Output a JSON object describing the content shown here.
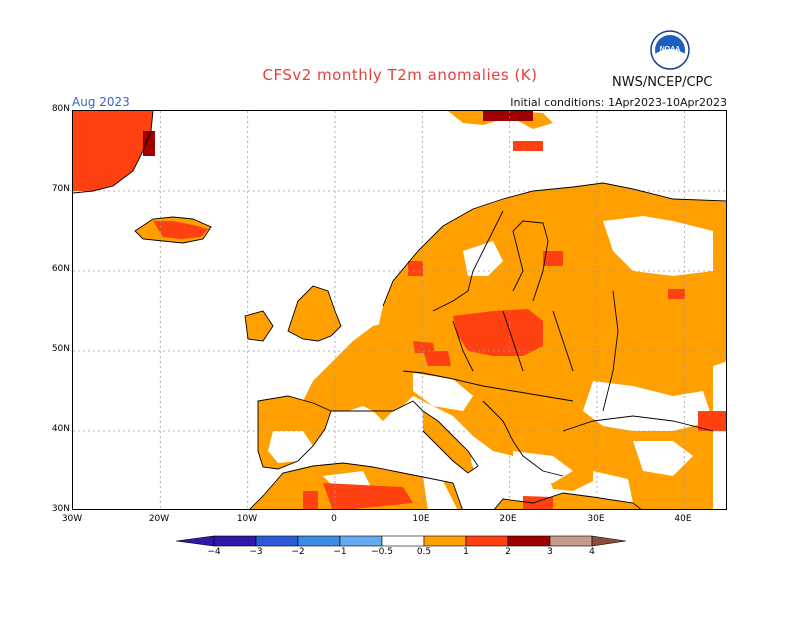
{
  "title": "CFSv2 monthly T2m anomalies (K)",
  "agency": "NWS/NCEP/CPC",
  "logo_text": "NOAA",
  "month": "Aug 2023",
  "initial_conditions": "Initial conditions: 1Apr2023-10Apr2023",
  "colors": {
    "title": "#e8403a",
    "month": "#3a5fcd",
    "land_outline": "#000000",
    "grid": "#9a9a9a",
    "cat_0_5_1": "#ffa000",
    "cat_1_2": "#ff4010",
    "cat_2_3": "#a00000",
    "cat_3_4": "#c89c8c"
  },
  "lat_ticks": [
    "80N",
    "70N",
    "60N",
    "50N",
    "40N",
    "30N"
  ],
  "lon_ticks": [
    "30W",
    "20W",
    "10W",
    "0",
    "10E",
    "20E",
    "30E",
    "40E"
  ],
  "colorbar": {
    "labels": [
      "−4",
      "−3",
      "−2",
      "−1",
      "−0.5",
      "0.5",
      "1",
      "2",
      "3",
      "4"
    ],
    "colors": [
      "#3218a8",
      "#2c5ad8",
      "#3c8ce6",
      "#64aaf0",
      "#ffffff",
      "#ffa000",
      "#ff4010",
      "#a00000",
      "#c89c8c"
    ],
    "low_end": "#3218a8",
    "high_end": "#8c4c3c"
  },
  "chart_data": {
    "type": "heatmap",
    "title": "CFSv2 monthly T2m anomalies (K)",
    "variable": "2m temperature anomaly",
    "units": "K",
    "valid_month": "Aug 2023",
    "init": "1Apr2023-10Apr2023",
    "lon_range": [
      -30,
      45
    ],
    "lat_range": [
      30,
      80
    ],
    "categories": [
      {
        "range": "0.5 to 1",
        "color": "#ffa000",
        "region": "most of Europe, Scandinavia, western Russia, North Africa, Turkey"
      },
      {
        "range": "1 to 2",
        "color": "#ff4010",
        "region": "Poland/Baltic, Greenland, Iceland coast, parts of Algeria/Tunisia/Libya"
      },
      {
        "range": "2 to 3",
        "color": "#a00000",
        "region": "small spots in Greenland/Svalbard"
      },
      {
        "range": "below 0.5",
        "color": "#ffffff",
        "region": "parts of Spain interior, Italy Alps, Balkans patches, northern Finland/Kola"
      }
    ]
  }
}
